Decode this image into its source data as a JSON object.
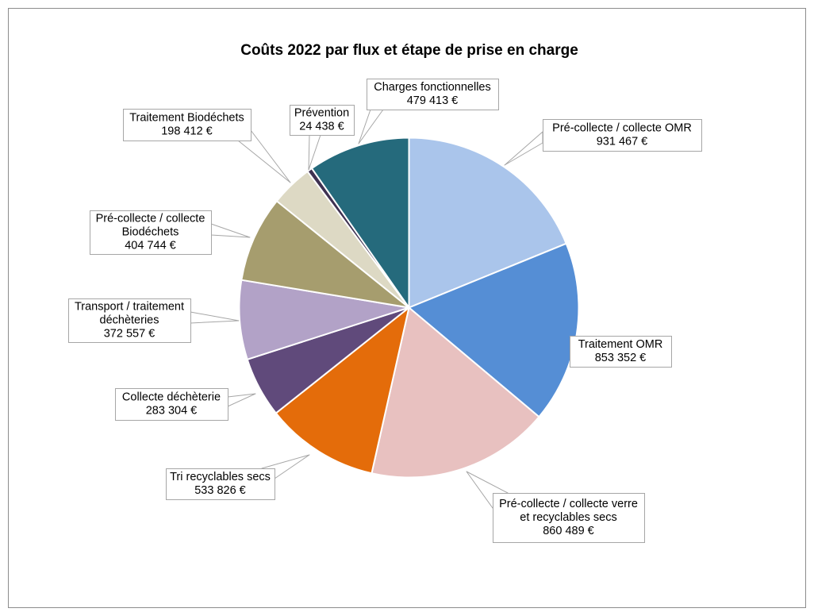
{
  "chart_data": {
    "type": "pie",
    "title": "Coûts 2022 par flux et étape de prise en charge",
    "slices": [
      {
        "label": "Pré-collecte / collecte OMR",
        "value": 931467,
        "value_label": "931 467 €",
        "color": "#AAC5EB"
      },
      {
        "label": "Traitement OMR",
        "value": 853352,
        "value_label": "853 352 €",
        "color": "#558ED5"
      },
      {
        "label": "Pré-collecte / collecte verre et recyclables secs",
        "value": 860489,
        "value_label": "860 489 €",
        "color": "#E8C1C0"
      },
      {
        "label": "Tri recyclables secs",
        "value": 533826,
        "value_label": "533 826 €",
        "color": "#E46C0A"
      },
      {
        "label": "Collecte déchèterie",
        "value": 283304,
        "value_label": "283 304 €",
        "color": "#604A7B"
      },
      {
        "label": "Transport / traitement déchèteries",
        "value": 372557,
        "value_label": "372 557 €",
        "color": "#B2A2C7"
      },
      {
        "label": "Pré-collecte / collecte Biodéchets",
        "value": 404744,
        "value_label": "404 744 €",
        "color": "#A69D6E"
      },
      {
        "label": "Traitement Biodéchets",
        "value": 198412,
        "value_label": "198 412 €",
        "color": "#DDD9C4"
      },
      {
        "label": "Prévention",
        "value": 24438,
        "value_label": "24 438 €",
        "color": "#3F3151"
      },
      {
        "label": "Charges fonctionnelles",
        "value": 479413,
        "value_label": "479 413 €",
        "color": "#256A7C"
      }
    ]
  }
}
